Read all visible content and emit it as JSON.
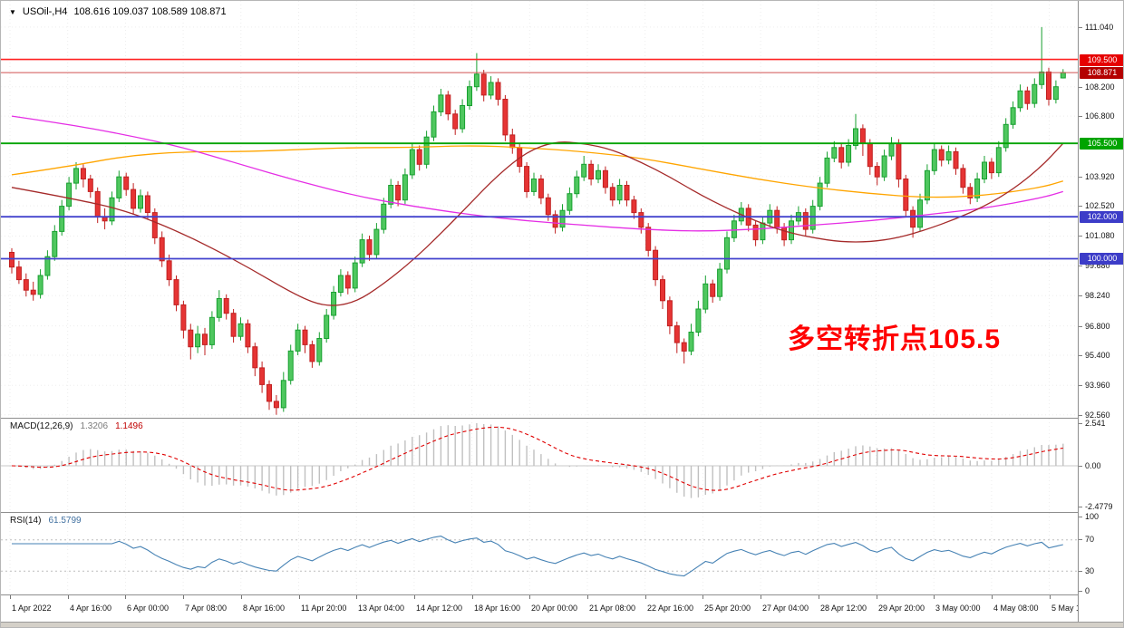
{
  "window": {
    "title_marker": "▼",
    "symbol_period": "USOil-,H4",
    "ohlc": "108.616 109.037 108.589 108.871"
  },
  "annotation": {
    "text": "多空转折点105.5",
    "color": "#ff0000"
  },
  "chart_data": {
    "type": "candlestick",
    "symbol": "USOil-",
    "timeframe": "H4",
    "current": {
      "open": "108.616",
      "high": "109.037",
      "low": "108.589",
      "close": "108.871"
    },
    "style": {
      "background": "#ffffff",
      "grid": "#ededed",
      "up_fill": "#4fc75f",
      "up_border": "#18a030",
      "down_fill": "#e63434",
      "down_border": "#c02020"
    },
    "y_axis": {
      "labels": [
        "111.040",
        "108.200",
        "106.800",
        "103.920",
        "102.520",
        "101.080",
        "99.680",
        "98.240",
        "96.800",
        "95.400",
        "93.960",
        "92.560"
      ]
    },
    "x_axis": {
      "labels": [
        "1 Apr 2022",
        "4 Apr 16:00",
        "6 Apr 00:00",
        "7 Apr 08:00",
        "8 Apr 16:00",
        "11 Apr 20:00",
        "13 Apr 04:00",
        "14 Apr 12:00",
        "18 Apr 16:00",
        "20 Apr 00:00",
        "21 Apr 08:00",
        "22 Apr 16:00",
        "25 Apr 20:00",
        "27 Apr 04:00",
        "28 Apr 12:00",
        "29 Apr 20:00",
        "3 May 00:00",
        "4 May 08:00",
        "5 May 16:00"
      ]
    },
    "levels": [
      {
        "price": 109.5,
        "label": "109.500",
        "color": "#ff2222",
        "badge": "#e60000",
        "line_width": 1.6
      },
      {
        "price": 108.871,
        "label": "108.871",
        "color": "#d05050",
        "badge": "#b40000",
        "line_width": 1
      },
      {
        "price": 105.5,
        "label": "105.500",
        "color": "#00a400",
        "badge": "#00a400",
        "line_width": 1.8
      },
      {
        "price": 102.0,
        "label": "102.000",
        "color": "#4242cd",
        "badge": "#3c3cc8",
        "line_width": 1.8
      },
      {
        "price": 100.0,
        "label": "100.000",
        "color": "#4242cd",
        "badge": "#3c3cc8",
        "line_width": 1.8
      }
    ],
    "moving_averages": [
      {
        "name": "ma-orange",
        "color": "#ffa500",
        "points": [
          [
            0,
            104.0
          ],
          [
            8,
            104.4
          ],
          [
            16,
            104.9
          ],
          [
            24,
            105.1
          ],
          [
            32,
            105.1
          ],
          [
            40,
            105.2
          ],
          [
            48,
            105.3
          ],
          [
            56,
            105.3
          ],
          [
            64,
            105.4
          ],
          [
            72,
            105.3
          ],
          [
            80,
            105.1
          ],
          [
            88,
            104.8
          ],
          [
            96,
            104.3
          ],
          [
            104,
            103.8
          ],
          [
            112,
            103.4
          ],
          [
            120,
            103.1
          ],
          [
            128,
            102.9
          ],
          [
            136,
            103.0
          ],
          [
            144,
            103.4
          ],
          [
            147,
            103.7
          ]
        ]
      },
      {
        "name": "ma-magenta",
        "color": "#e52ee5",
        "points": [
          [
            0,
            106.8
          ],
          [
            8,
            106.4
          ],
          [
            16,
            105.9
          ],
          [
            24,
            105.3
          ],
          [
            32,
            104.5
          ],
          [
            40,
            103.7
          ],
          [
            48,
            103.0
          ],
          [
            56,
            102.5
          ],
          [
            64,
            102.1
          ],
          [
            72,
            101.8
          ],
          [
            80,
            101.6
          ],
          [
            88,
            101.4
          ],
          [
            96,
            101.3
          ],
          [
            104,
            101.4
          ],
          [
            112,
            101.6
          ],
          [
            120,
            101.8
          ],
          [
            128,
            102.1
          ],
          [
            136,
            102.4
          ],
          [
            144,
            102.9
          ],
          [
            147,
            103.2
          ]
        ]
      },
      {
        "name": "ma-darkred",
        "color": "#a52a2a",
        "points": [
          [
            0,
            103.4
          ],
          [
            8,
            102.9
          ],
          [
            16,
            102.3
          ],
          [
            24,
            101.2
          ],
          [
            32,
            99.8
          ],
          [
            40,
            98.2
          ],
          [
            44,
            97.7
          ],
          [
            48,
            97.9
          ],
          [
            52,
            98.8
          ],
          [
            56,
            99.9
          ],
          [
            60,
            101.2
          ],
          [
            64,
            102.6
          ],
          [
            68,
            104.0
          ],
          [
            72,
            105.1
          ],
          [
            76,
            105.6
          ],
          [
            80,
            105.5
          ],
          [
            84,
            105.2
          ],
          [
            88,
            104.6
          ],
          [
            92,
            103.9
          ],
          [
            96,
            103.1
          ],
          [
            100,
            102.4
          ],
          [
            104,
            101.8
          ],
          [
            108,
            101.3
          ],
          [
            112,
            101.0
          ],
          [
            116,
            100.8
          ],
          [
            120,
            100.8
          ],
          [
            124,
            101.0
          ],
          [
            128,
            101.4
          ],
          [
            132,
            101.9
          ],
          [
            136,
            102.5
          ],
          [
            140,
            103.3
          ],
          [
            144,
            104.4
          ],
          [
            147,
            105.5
          ]
        ]
      }
    ],
    "candles": [
      [
        100.3,
        100.5,
        99.3,
        99.6
      ],
      [
        99.6,
        99.9,
        98.8,
        99.0
      ],
      [
        99.0,
        99.3,
        98.2,
        98.5
      ],
      [
        98.5,
        98.9,
        98.0,
        98.3
      ],
      [
        98.3,
        99.5,
        98.1,
        99.2
      ],
      [
        99.2,
        100.4,
        99.0,
        100.1
      ],
      [
        100.1,
        101.6,
        99.9,
        101.3
      ],
      [
        101.3,
        102.8,
        101.1,
        102.5
      ],
      [
        102.5,
        103.9,
        102.3,
        103.6
      ],
      [
        103.6,
        104.6,
        103.3,
        104.3
      ],
      [
        104.3,
        104.5,
        103.4,
        103.8
      ],
      [
        103.8,
        104.0,
        102.9,
        103.2
      ],
      [
        103.2,
        103.4,
        101.7,
        102.0
      ],
      [
        102.0,
        102.4,
        101.4,
        101.8
      ],
      [
        101.8,
        103.2,
        101.6,
        102.9
      ],
      [
        102.9,
        104.2,
        102.7,
        103.9
      ],
      [
        103.9,
        104.1,
        103.0,
        103.3
      ],
      [
        103.3,
        103.6,
        102.1,
        102.4
      ],
      [
        102.4,
        103.3,
        102.2,
        103.0
      ],
      [
        103.0,
        103.2,
        101.9,
        102.2
      ],
      [
        102.2,
        102.4,
        100.7,
        101.0
      ],
      [
        101.0,
        101.3,
        99.6,
        99.9
      ],
      [
        99.9,
        100.2,
        98.7,
        99.0
      ],
      [
        99.0,
        99.2,
        97.5,
        97.8
      ],
      [
        97.8,
        98.0,
        96.2,
        96.6
      ],
      [
        96.6,
        96.9,
        95.2,
        95.8
      ],
      [
        95.8,
        96.8,
        95.5,
        96.4
      ],
      [
        96.4,
        96.7,
        95.4,
        95.9
      ],
      [
        95.9,
        97.5,
        95.7,
        97.2
      ],
      [
        97.2,
        98.5,
        97.0,
        98.1
      ],
      [
        98.1,
        98.3,
        97.1,
        97.4
      ],
      [
        97.4,
        97.6,
        96.0,
        96.3
      ],
      [
        96.3,
        97.2,
        96.1,
        96.9
      ],
      [
        96.9,
        97.1,
        95.5,
        95.8
      ],
      [
        95.8,
        96.0,
        94.4,
        94.8
      ],
      [
        94.8,
        95.1,
        93.6,
        94.0
      ],
      [
        94.0,
        94.2,
        92.8,
        93.2
      ],
      [
        93.2,
        93.5,
        92.56,
        92.9
      ],
      [
        92.9,
        94.6,
        92.7,
        94.2
      ],
      [
        94.2,
        95.9,
        94.0,
        95.6
      ],
      [
        95.6,
        96.9,
        95.4,
        96.6
      ],
      [
        96.6,
        96.8,
        95.5,
        95.9
      ],
      [
        95.9,
        96.1,
        94.8,
        95.1
      ],
      [
        95.1,
        96.5,
        94.9,
        96.2
      ],
      [
        96.2,
        97.6,
        96.0,
        97.3
      ],
      [
        97.3,
        98.7,
        97.1,
        98.4
      ],
      [
        98.4,
        99.5,
        98.2,
        99.2
      ],
      [
        99.2,
        99.4,
        98.3,
        98.6
      ],
      [
        98.6,
        100.1,
        98.4,
        99.8
      ],
      [
        99.8,
        101.2,
        99.6,
        100.9
      ],
      [
        100.9,
        101.1,
        99.9,
        100.2
      ],
      [
        100.2,
        101.7,
        100.0,
        101.4
      ],
      [
        101.4,
        102.9,
        101.2,
        102.6
      ],
      [
        102.6,
        103.8,
        102.4,
        103.5
      ],
      [
        103.5,
        103.7,
        102.5,
        102.8
      ],
      [
        102.8,
        104.3,
        102.6,
        104.0
      ],
      [
        104.0,
        105.5,
        103.8,
        105.2
      ],
      [
        105.2,
        105.4,
        104.2,
        104.5
      ],
      [
        104.5,
        106.1,
        104.3,
        105.8
      ],
      [
        105.8,
        107.3,
        105.6,
        107.0
      ],
      [
        107.0,
        108.1,
        106.8,
        107.8
      ],
      [
        107.8,
        108.0,
        106.6,
        106.9
      ],
      [
        106.9,
        107.1,
        105.9,
        106.2
      ],
      [
        106.2,
        107.6,
        106.0,
        107.3
      ],
      [
        107.3,
        108.5,
        107.1,
        108.2
      ],
      [
        108.2,
        109.8,
        108.0,
        108.8
      ],
      [
        108.8,
        109.0,
        107.5,
        107.8
      ],
      [
        107.8,
        108.7,
        107.6,
        108.4
      ],
      [
        108.4,
        108.6,
        107.3,
        107.6
      ],
      [
        107.6,
        107.8,
        105.6,
        105.9
      ],
      [
        105.9,
        106.2,
        105.0,
        105.3
      ],
      [
        105.3,
        105.5,
        104.1,
        104.4
      ],
      [
        104.4,
        104.6,
        102.9,
        103.2
      ],
      [
        103.2,
        104.1,
        103.0,
        103.8
      ],
      [
        103.8,
        104.0,
        102.6,
        102.9
      ],
      [
        102.9,
        103.1,
        101.8,
        102.1
      ],
      [
        102.1,
        102.3,
        101.2,
        101.5
      ],
      [
        101.5,
        102.6,
        101.3,
        102.3
      ],
      [
        102.3,
        103.4,
        102.1,
        103.1
      ],
      [
        103.1,
        104.2,
        102.9,
        103.9
      ],
      [
        103.9,
        104.9,
        103.7,
        104.5
      ],
      [
        104.5,
        104.7,
        103.5,
        103.8
      ],
      [
        103.8,
        104.5,
        103.6,
        104.2
      ],
      [
        104.2,
        104.4,
        103.1,
        103.4
      ],
      [
        103.4,
        103.6,
        102.5,
        102.8
      ],
      [
        102.8,
        103.8,
        102.6,
        103.5
      ],
      [
        103.5,
        103.7,
        102.5,
        102.8
      ],
      [
        102.8,
        103.0,
        101.9,
        102.2
      ],
      [
        102.2,
        102.4,
        101.2,
        101.5
      ],
      [
        101.5,
        101.7,
        100.1,
        100.4
      ],
      [
        100.4,
        100.6,
        98.7,
        99.0
      ],
      [
        99.0,
        99.2,
        97.6,
        98.0
      ],
      [
        98.0,
        98.2,
        96.4,
        96.8
      ],
      [
        96.8,
        97.0,
        95.5,
        96.0
      ],
      [
        96.0,
        96.2,
        95.0,
        95.6
      ],
      [
        95.6,
        96.9,
        95.4,
        96.5
      ],
      [
        96.5,
        98.0,
        96.3,
        97.6
      ],
      [
        97.6,
        99.2,
        97.4,
        98.8
      ],
      [
        98.8,
        99.0,
        97.9,
        98.2
      ],
      [
        98.2,
        99.8,
        98.0,
        99.5
      ],
      [
        99.5,
        101.3,
        99.3,
        101.0
      ],
      [
        101.0,
        102.1,
        100.8,
        101.8
      ],
      [
        101.8,
        102.7,
        101.6,
        102.4
      ],
      [
        102.4,
        102.6,
        101.3,
        101.6
      ],
      [
        101.6,
        101.8,
        100.6,
        100.9
      ],
      [
        100.9,
        102.0,
        100.7,
        101.7
      ],
      [
        101.7,
        102.6,
        101.5,
        102.3
      ],
      [
        102.3,
        102.5,
        101.2,
        101.5
      ],
      [
        101.5,
        101.7,
        100.6,
        100.9
      ],
      [
        100.9,
        102.1,
        100.7,
        101.8
      ],
      [
        101.8,
        102.5,
        101.6,
        102.2
      ],
      [
        102.2,
        102.4,
        101.1,
        101.4
      ],
      [
        101.4,
        102.8,
        101.2,
        102.5
      ],
      [
        102.5,
        103.9,
        102.3,
        103.6
      ],
      [
        103.6,
        105.1,
        103.4,
        104.8
      ],
      [
        104.8,
        105.6,
        104.6,
        105.3
      ],
      [
        105.3,
        105.5,
        104.3,
        104.6
      ],
      [
        104.6,
        105.7,
        104.4,
        105.4
      ],
      [
        105.4,
        106.9,
        105.2,
        106.2
      ],
      [
        106.2,
        106.4,
        104.9,
        105.5
      ],
      [
        105.5,
        105.7,
        104.0,
        104.4
      ],
      [
        104.4,
        104.6,
        103.5,
        103.9
      ],
      [
        103.9,
        105.2,
        103.7,
        104.9
      ],
      [
        104.9,
        105.8,
        104.7,
        105.5
      ],
      [
        105.5,
        105.7,
        103.4,
        103.8
      ],
      [
        103.8,
        104.0,
        102.0,
        102.3
      ],
      [
        102.3,
        102.5,
        101.0,
        101.5
      ],
      [
        101.5,
        103.1,
        101.3,
        102.8
      ],
      [
        102.8,
        104.5,
        102.6,
        104.2
      ],
      [
        104.2,
        105.5,
        104.0,
        105.2
      ],
      [
        105.2,
        105.4,
        104.4,
        104.7
      ],
      [
        104.7,
        105.4,
        104.5,
        105.1
      ],
      [
        105.1,
        105.3,
        104.0,
        104.3
      ],
      [
        104.3,
        104.5,
        103.1,
        103.4
      ],
      [
        103.4,
        103.6,
        102.6,
        102.9
      ],
      [
        102.9,
        104.1,
        102.7,
        103.8
      ],
      [
        103.8,
        104.9,
        103.6,
        104.6
      ],
      [
        104.6,
        104.8,
        103.8,
        104.1
      ],
      [
        104.1,
        105.6,
        103.9,
        105.3
      ],
      [
        105.3,
        106.7,
        105.1,
        106.4
      ],
      [
        106.4,
        107.5,
        106.2,
        107.2
      ],
      [
        107.2,
        108.3,
        107.0,
        108.0
      ],
      [
        108.0,
        108.2,
        107.1,
        107.4
      ],
      [
        107.4,
        108.6,
        107.2,
        108.3
      ],
      [
        108.3,
        111.04,
        108.1,
        108.9
      ],
      [
        108.9,
        109.1,
        107.3,
        107.6
      ],
      [
        107.6,
        108.5,
        107.4,
        108.2
      ],
      [
        108.616,
        109.037,
        108.589,
        108.871
      ]
    ],
    "macd": {
      "label": "MACD(12,26,9)",
      "value_main": "1.3206",
      "value_signal": "1.1496",
      "params": {
        "fast": 12,
        "slow": 26,
        "signal": 9
      },
      "axis_labels": [
        "2.541",
        "0.00",
        "-2.4779"
      ],
      "hist_color": "#c0c0c0",
      "signal_color": "#e00000"
    },
    "rsi": {
      "label": "RSI(14)",
      "value": "61.5799",
      "period": 14,
      "axis_labels": [
        "100",
        "70",
        "30",
        "0"
      ],
      "levels": [
        70,
        30
      ],
      "range": [
        0,
        100
      ],
      "line_color": "#4682b4"
    }
  }
}
